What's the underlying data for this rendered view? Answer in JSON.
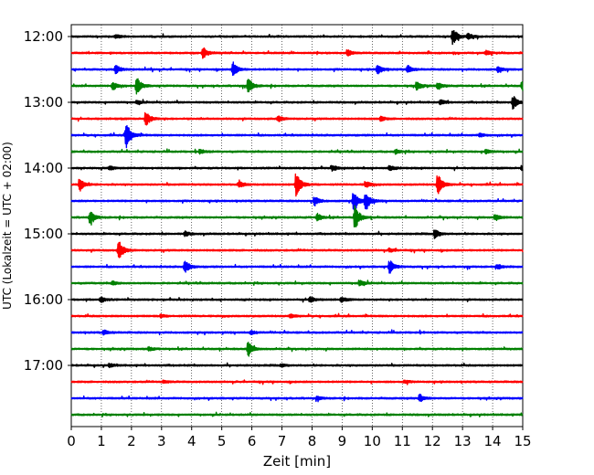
{
  "chart_data": {
    "type": "line",
    "xlabel": "Zeit  [min]",
    "ylabel": "UTC (Lokalzeit = UTC + 02:00)",
    "xlim": [
      0,
      15
    ],
    "x_ticks": [
      "0",
      "1",
      "2",
      "3",
      "4",
      "5",
      "6",
      "7",
      "8",
      "9",
      "10",
      "11",
      "12",
      "13",
      "14",
      "15"
    ],
    "y_ticks": [
      "12:00",
      "13:00",
      "14:00",
      "15:00",
      "16:00",
      "17:00"
    ],
    "grid": "vertical-dotted",
    "trace_minutes": 15,
    "row_colors": [
      "#000000",
      "#ff0000",
      "#0000ff",
      "#008000"
    ],
    "traces": [
      {
        "start": "12:00",
        "color": "#000000",
        "events": [
          {
            "t": 1.5,
            "a": 0.2
          },
          {
            "t": 12.7,
            "a": 0.9
          },
          {
            "t": 13.2,
            "a": 0.3
          }
        ]
      },
      {
        "start": "12:15",
        "color": "#ff0000",
        "events": [
          {
            "t": 4.4,
            "a": 0.6
          },
          {
            "t": 9.2,
            "a": 0.35
          },
          {
            "t": 13.8,
            "a": 0.25
          }
        ]
      },
      {
        "start": "12:30",
        "color": "#0000ff",
        "events": [
          {
            "t": 1.5,
            "a": 0.45
          },
          {
            "t": 5.4,
            "a": 0.8
          },
          {
            "t": 10.2,
            "a": 0.55
          },
          {
            "t": 11.2,
            "a": 0.4
          },
          {
            "t": 14.2,
            "a": 0.3
          }
        ]
      },
      {
        "start": "12:45",
        "color": "#008000",
        "events": [
          {
            "t": 1.4,
            "a": 0.45
          },
          {
            "t": 2.2,
            "a": 0.9
          },
          {
            "t": 5.9,
            "a": 0.85
          },
          {
            "t": 11.5,
            "a": 0.45
          },
          {
            "t": 12.2,
            "a": 0.4
          },
          {
            "t": 15.0,
            "a": 0.4
          }
        ]
      },
      {
        "start": "13:00",
        "color": "#000000",
        "events": [
          {
            "t": 2.2,
            "a": 0.2
          },
          {
            "t": 12.3,
            "a": 0.25
          },
          {
            "t": 14.7,
            "a": 0.75
          }
        ]
      },
      {
        "start": "13:15",
        "color": "#ff0000",
        "events": [
          {
            "t": 2.5,
            "a": 0.85
          },
          {
            "t": 6.9,
            "a": 0.3
          },
          {
            "t": 10.3,
            "a": 0.25
          }
        ]
      },
      {
        "start": "13:30",
        "color": "#0000ff",
        "events": [
          {
            "t": 1.85,
            "a": 1.6
          },
          {
            "t": 13.6,
            "a": 0.2
          }
        ]
      },
      {
        "start": "13:45",
        "color": "#008000",
        "events": [
          {
            "t": 4.3,
            "a": 0.25
          },
          {
            "t": 10.8,
            "a": 0.25
          },
          {
            "t": 13.8,
            "a": 0.25
          }
        ]
      },
      {
        "start": "14:00",
        "color": "#000000",
        "events": [
          {
            "t": 1.3,
            "a": 0.25
          },
          {
            "t": 8.7,
            "a": 0.3
          },
          {
            "t": 10.6,
            "a": 0.25
          },
          {
            "t": 15.0,
            "a": 0.3
          }
        ]
      },
      {
        "start": "14:15",
        "color": "#ff0000",
        "events": [
          {
            "t": 0.3,
            "a": 0.7
          },
          {
            "t": 5.6,
            "a": 0.35
          },
          {
            "t": 7.5,
            "a": 1.4
          },
          {
            "t": 9.8,
            "a": 0.35
          },
          {
            "t": 12.2,
            "a": 1.2
          }
        ]
      },
      {
        "start": "14:30",
        "color": "#0000ff",
        "events": [
          {
            "t": 8.1,
            "a": 0.5
          },
          {
            "t": 9.4,
            "a": 1.1
          },
          {
            "t": 9.8,
            "a": 1.1
          }
        ]
      },
      {
        "start": "14:45",
        "color": "#008000",
        "events": [
          {
            "t": 0.65,
            "a": 0.7
          },
          {
            "t": 8.2,
            "a": 0.4
          },
          {
            "t": 9.45,
            "a": 1.3
          },
          {
            "t": 14.1,
            "a": 0.35
          }
        ]
      },
      {
        "start": "15:00",
        "color": "#000000",
        "events": [
          {
            "t": 3.8,
            "a": 0.25
          },
          {
            "t": 12.1,
            "a": 0.5
          }
        ]
      },
      {
        "start": "15:15",
        "color": "#ff0000",
        "events": [
          {
            "t": 1.6,
            "a": 1.1
          },
          {
            "t": 10.6,
            "a": 0.2
          }
        ]
      },
      {
        "start": "15:30",
        "color": "#0000ff",
        "events": [
          {
            "t": 3.8,
            "a": 0.7
          },
          {
            "t": 10.6,
            "a": 0.7
          },
          {
            "t": 14.2,
            "a": 0.25
          }
        ]
      },
      {
        "start": "15:45",
        "color": "#008000",
        "events": [
          {
            "t": 1.4,
            "a": 0.2
          },
          {
            "t": 9.6,
            "a": 0.35
          }
        ]
      },
      {
        "start": "16:00",
        "color": "#000000",
        "events": [
          {
            "t": 1.0,
            "a": 0.3
          },
          {
            "t": 7.95,
            "a": 0.3
          },
          {
            "t": 9.0,
            "a": 0.25
          }
        ]
      },
      {
        "start": "16:15",
        "color": "#ff0000",
        "events": [
          {
            "t": 3.0,
            "a": 0.15
          },
          {
            "t": 7.3,
            "a": 0.2
          }
        ]
      },
      {
        "start": "16:30",
        "color": "#0000ff",
        "events": [
          {
            "t": 1.1,
            "a": 0.25
          },
          {
            "t": 6.0,
            "a": 0.2
          }
        ]
      },
      {
        "start": "16:45",
        "color": "#008000",
        "events": [
          {
            "t": 2.6,
            "a": 0.2
          },
          {
            "t": 5.9,
            "a": 0.85
          }
        ]
      },
      {
        "start": "17:00",
        "color": "#000000",
        "events": [
          {
            "t": 1.3,
            "a": 0.2
          },
          {
            "t": 7.0,
            "a": 0.15
          }
        ]
      },
      {
        "start": "17:15",
        "color": "#ff0000",
        "events": [
          {
            "t": 3.1,
            "a": 0.15
          },
          {
            "t": 11.1,
            "a": 0.15
          }
        ]
      },
      {
        "start": "17:30",
        "color": "#0000ff",
        "events": [
          {
            "t": 8.2,
            "a": 0.2
          },
          {
            "t": 11.6,
            "a": 0.45
          }
        ]
      },
      {
        "start": "17:45",
        "color": "#008000",
        "events": []
      }
    ]
  }
}
